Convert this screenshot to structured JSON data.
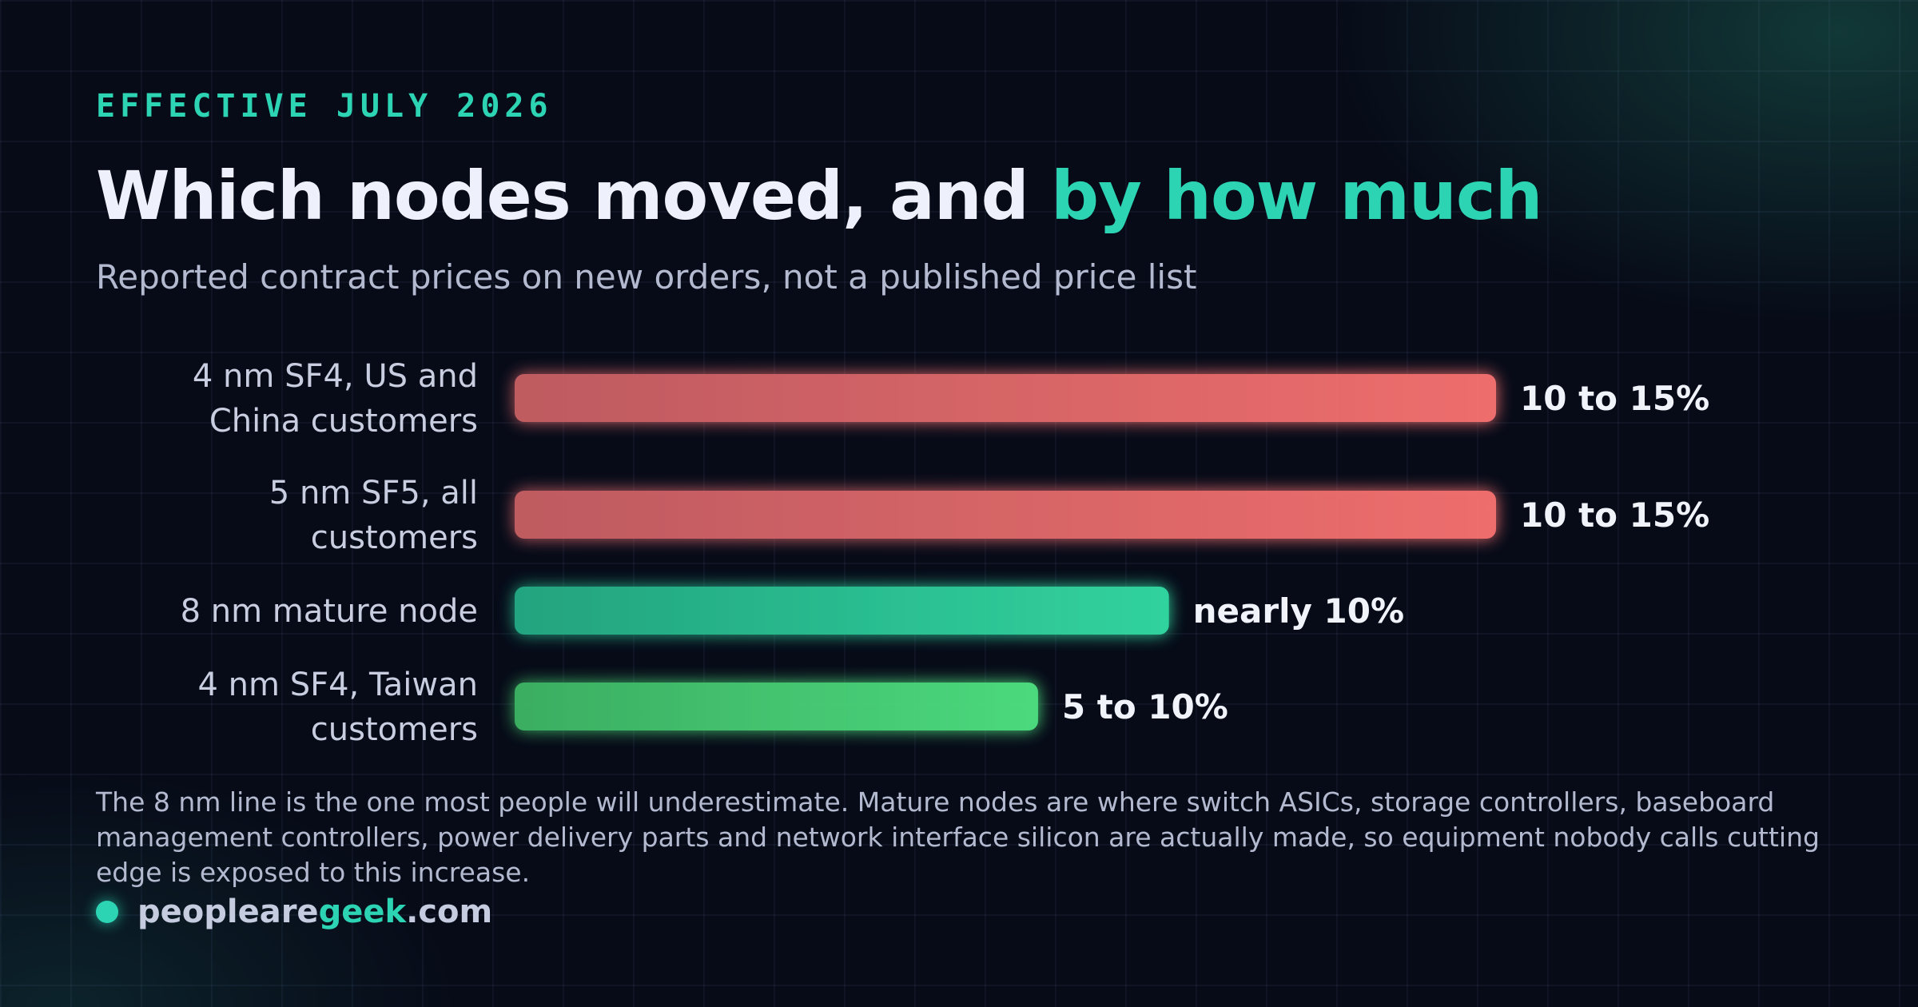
{
  "kicker": "EFFECTIVE JULY 2026",
  "title": {
    "lead": "Which nodes moved, and ",
    "accent": "by how much"
  },
  "subtitle": "Reported contract prices on new orders, not a published price list",
  "chart_data": {
    "type": "bar",
    "orientation": "horizontal",
    "categories": [
      [
        "4 nm SF4, US and",
        "China customers"
      ],
      [
        "5 nm SF5, all",
        "customers"
      ],
      [
        "8 nm mature node"
      ],
      [
        "4 nm SF4, Taiwan",
        "customers"
      ]
    ],
    "values": [
      15,
      15,
      10,
      8
    ],
    "labels": [
      "10 to 15%",
      "10 to 15%",
      "nearly 10%",
      "5 to 10%"
    ],
    "colors": [
      [
        "#c45e64",
        "#f6716f"
      ],
      [
        "#c45e64",
        "#f6716f"
      ],
      [
        "#24a983",
        "#33d9a2"
      ],
      [
        "#3db364",
        "#4fe081"
      ]
    ],
    "xlim": [
      0,
      15
    ],
    "grid": false,
    "legend": "none"
  },
  "note": "The 8 nm line is the one most people will underestimate. Mature nodes are where switch ASICs, storage controllers, baseboard management controllers, power delivery parts and network interface silicon are actually made, so equipment nobody calls cutting edge is exposed to this increase.",
  "brand": {
    "part1": "peopleare",
    "part2": "geek",
    "part3": ".com"
  },
  "colors": {
    "background": "#070b18",
    "accent": "#2dd4b4",
    "text": "#eef0fb",
    "muted": "#b3bad0"
  }
}
